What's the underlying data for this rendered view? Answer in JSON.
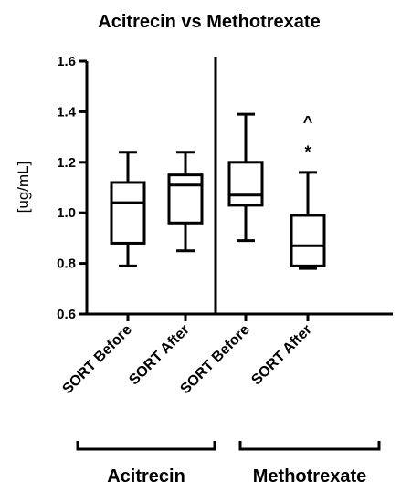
{
  "chart_data": {
    "type": "box",
    "title": "Acitrecin vs Methotrexate",
    "ylabel": "[ug/mL]",
    "ylim": [
      0.6,
      1.6
    ],
    "yticks": [
      "0.6",
      "0.8",
      "1.0",
      "1.2",
      "1.4",
      "1.6"
    ],
    "categories": [
      "SORT Before",
      "SORT After",
      "SORT Before",
      "SORT After"
    ],
    "boxes": [
      {
        "category": "SORT Before",
        "group": "Acitrecin",
        "min": 0.79,
        "q1": 0.88,
        "median": 1.04,
        "q3": 1.12,
        "max": 1.24
      },
      {
        "category": "SORT After",
        "group": "Acitrecin",
        "min": 0.85,
        "q1": 0.96,
        "median": 1.11,
        "q3": 1.15,
        "max": 1.24
      },
      {
        "category": "SORT Before",
        "group": "Methotrexate",
        "min": 0.89,
        "q1": 1.03,
        "median": 1.07,
        "q3": 1.2,
        "max": 1.39
      },
      {
        "category": "SORT After",
        "group": "Methotrexate",
        "min": 0.78,
        "q1": 0.79,
        "median": 0.87,
        "q3": 0.99,
        "max": 1.16
      }
    ],
    "annotations": [
      {
        "category_index": 3,
        "text": "^",
        "y": 1.36
      },
      {
        "category_index": 3,
        "text": "*",
        "y": 1.24
      }
    ],
    "groups": [
      {
        "name": "Acitrecin",
        "categories": [
          0,
          1
        ]
      },
      {
        "name": "Methotrexate",
        "categories": [
          2,
          3
        ]
      }
    ],
    "grid": false,
    "divider_between": [
      1,
      2
    ]
  }
}
